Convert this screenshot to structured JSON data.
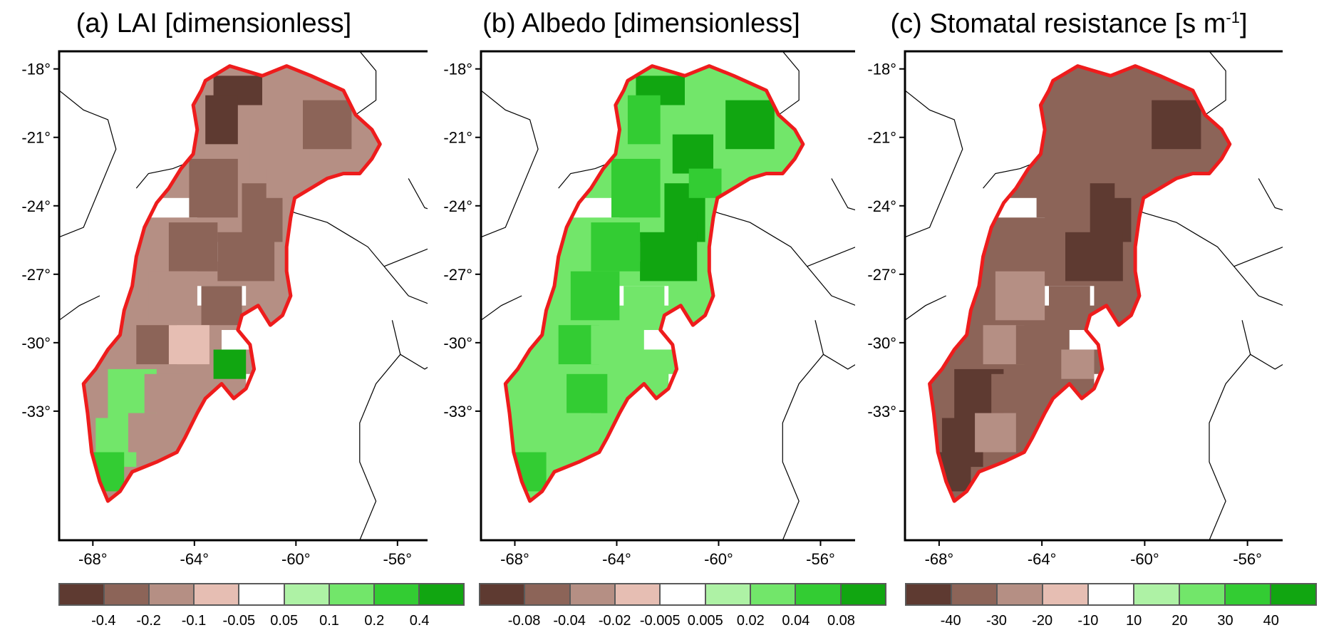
{
  "panels": [
    {
      "title": "(a) LAI [dimensionless]",
      "title_sup": "",
      "title_end": "",
      "colorbar_labels": [
        "-0.4",
        "-0.2",
        "-0.1",
        "-0.05",
        "0.05",
        "0.1",
        "0.2",
        "0.4"
      ],
      "dominant_sign": "mixed"
    },
    {
      "title": "(b) Albedo [dimensionless]",
      "title_sup": "",
      "title_end": "",
      "colorbar_labels": [
        "-0.08",
        "-0.04",
        "-0.02",
        "-0.005",
        "0.005",
        "0.02",
        "0.04",
        "0.08"
      ],
      "dominant_sign": "positive"
    },
    {
      "title": "(c) Stomatal resistance [s m",
      "title_sup": "-1",
      "title_end": "]",
      "colorbar_labels": [
        "-40",
        "-30",
        "-20",
        "-10",
        "10",
        "20",
        "30",
        "40"
      ],
      "dominant_sign": "negative"
    }
  ],
  "lat_ticks": [
    "-18°",
    "-21°",
    "-24°",
    "-27°",
    "-30°",
    "-33°"
  ],
  "lon_ticks": [
    "-68°",
    "-64°",
    "-60°",
    "-56°"
  ],
  "colors": {
    "palette": [
      "#5e3a31",
      "#8c6458",
      "#b58f84",
      "#e6beb3",
      "#ffffff",
      "#aef2a5",
      "#72e66a",
      "#33cc33",
      "#11a611"
    ],
    "region_outline": "#ee1c1c",
    "borders": "#000000"
  }
}
